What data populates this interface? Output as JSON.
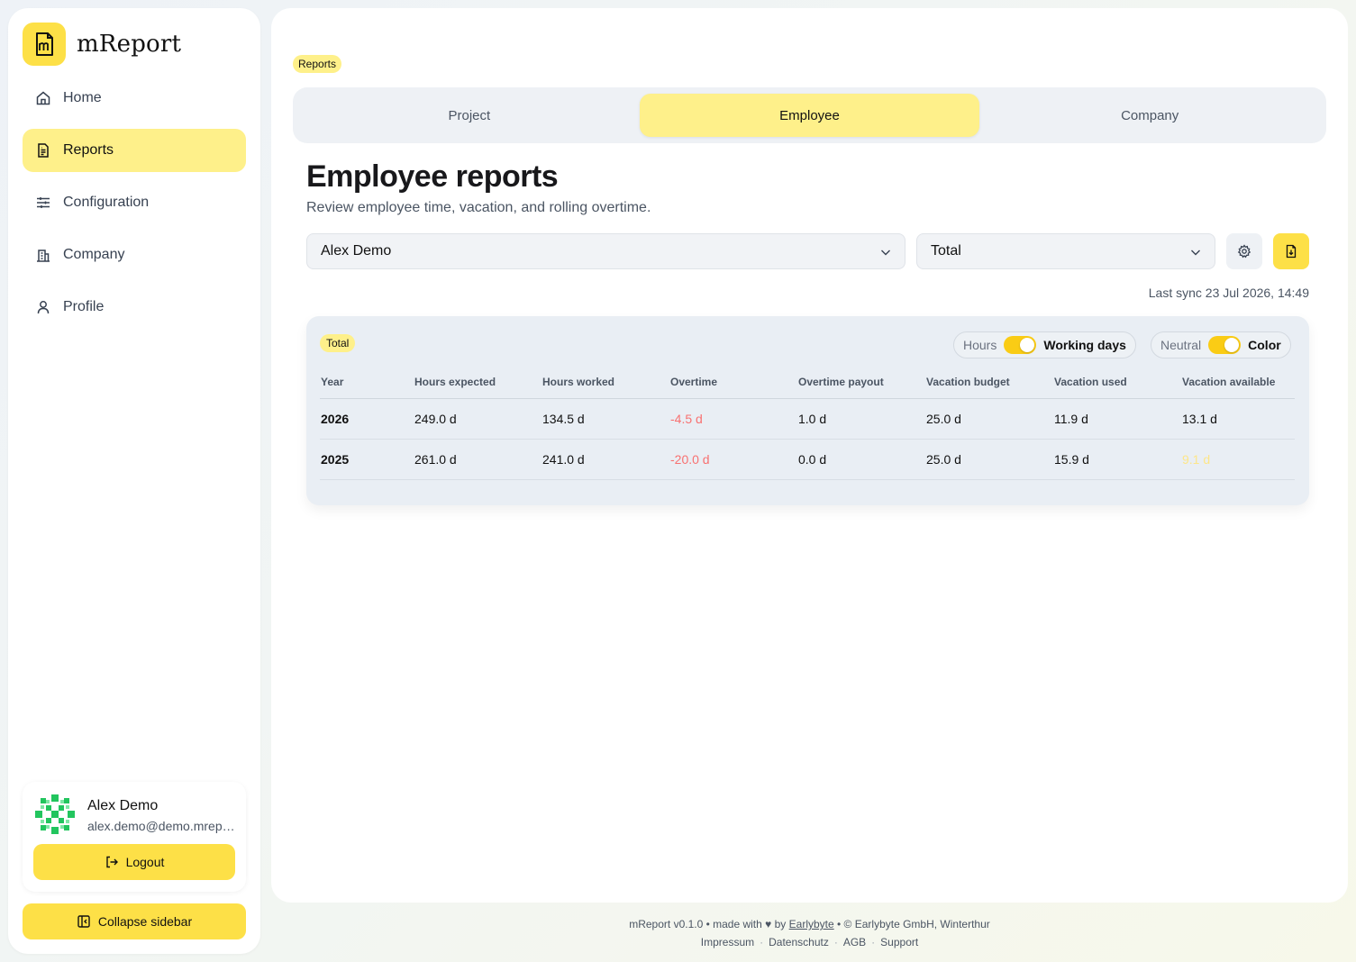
{
  "brand": {
    "name": "mReport"
  },
  "sidebar": {
    "items": [
      {
        "label": "Home",
        "icon": "home-icon"
      },
      {
        "label": "Reports",
        "icon": "report-icon",
        "active": true
      },
      {
        "label": "Configuration",
        "icon": "sliders-icon"
      },
      {
        "label": "Company",
        "icon": "building-icon"
      },
      {
        "label": "Profile",
        "icon": "user-icon"
      }
    ],
    "user": {
      "name": "Alex Demo",
      "email": "alex.demo@demo.mreport.ch"
    },
    "logout_label": "Logout",
    "collapse_label": "Collapse sidebar"
  },
  "main": {
    "breadcrumb": "Reports",
    "tabs": [
      {
        "label": "Project"
      },
      {
        "label": "Employee",
        "active": true
      },
      {
        "label": "Company"
      }
    ],
    "title": "Employee reports",
    "subtitle": "Review employee time, vacation, and rolling overtime.",
    "employee_select": "Alex Demo",
    "period_select": "Total",
    "last_sync": "Last sync 23 Jul 2026, 14:49"
  },
  "card": {
    "badge": "Total",
    "unit_toggle": {
      "off": "Hours",
      "on": "Working days",
      "value": "Working days"
    },
    "color_toggle": {
      "off": "Neutral",
      "on": "Color",
      "value": "Color"
    },
    "columns": [
      "Year",
      "Hours expected",
      "Hours worked",
      "Overtime",
      "Overtime payout",
      "Vacation budget",
      "Vacation used",
      "Vacation available"
    ],
    "rows": [
      {
        "year": "2026",
        "expected": "249.0 d",
        "worked": "134.5 d",
        "overtime": "-4.5 d",
        "payout": "1.0 d",
        "budget": "25.0 d",
        "used": "11.9 d",
        "available": "13.1 d"
      },
      {
        "year": "2025",
        "expected": "261.0 d",
        "worked": "241.0 d",
        "overtime": "-20.0 d",
        "payout": "0.0 d",
        "budget": "25.0 d",
        "used": "15.9 d",
        "available": "9.1 d"
      }
    ]
  },
  "footer": {
    "line1_prefix": "mReport v0.1.0 • made with ♥ by",
    "line1_link": "Earlybyte",
    "line1_suffix": "• © Earlybyte GmbH, Winterthur",
    "links": [
      "Impressum",
      "Datenschutz",
      "AGB",
      "Support"
    ]
  },
  "colors": {
    "accent": "#fde047",
    "accent_soft": "#fef08a",
    "negative": "#f87171"
  }
}
